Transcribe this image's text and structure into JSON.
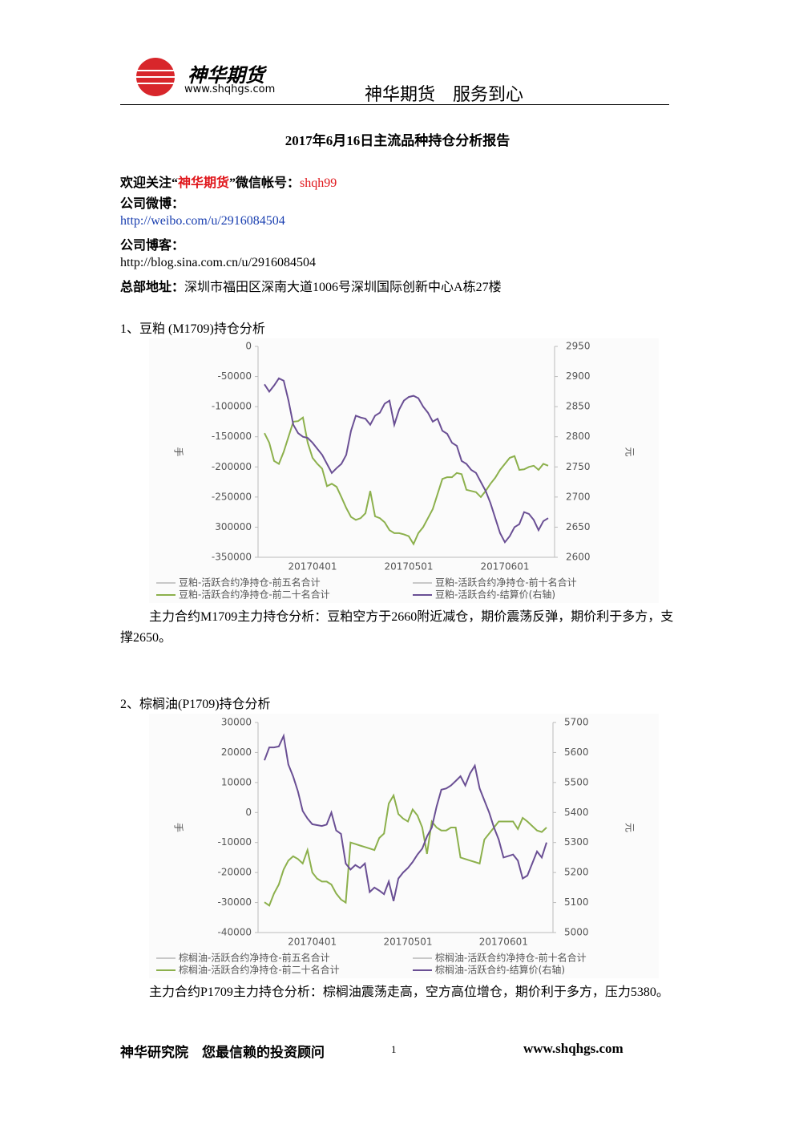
{
  "header": {
    "logo_name": "神华期货",
    "logo_url": "www.shqhgs.com",
    "slogan": "神华期货　服务到心"
  },
  "title": "2017年6月16日主流品种持仓分析报告",
  "follow": {
    "prefix": "欢迎关注“",
    "name": "神华期货",
    "middle": "”微信帐号：",
    "account": "shqh99"
  },
  "weibo": {
    "label": "公司微博：",
    "url": "http://weibo.com/u/2916084504"
  },
  "blog": {
    "label": "公司博客：",
    "url": "http://blog.sina.com.cn/u/2916084504"
  },
  "address": {
    "label": "总部地址：",
    "text": "深圳市福田区深南大道1006号深圳国际创新中心A栋27楼"
  },
  "sections": [
    {
      "heading": "1、豆粕 (M1709)持仓分析",
      "chart": {
        "type": "line",
        "y_label": "手",
        "y2_label": "元",
        "ylim": [
          -350000,
          0
        ],
        "yticks": [
          0,
          -50000,
          -100000,
          -150000,
          -200000,
          -250000,
          {
            "value": -300000,
            "label": "300000"
          },
          -350000
        ],
        "y2lim": [
          2600,
          2950
        ],
        "y2ticks": [
          2950,
          2900,
          2850,
          2800,
          2750,
          2700,
          2650,
          2600
        ],
        "categories": [
          null,
          null,
          null,
          null,
          null,
          null,
          null,
          null,
          null,
          null,
          "20170401",
          null,
          null,
          null,
          null,
          null,
          null,
          null,
          null,
          null,
          null,
          null,
          null,
          null,
          null,
          null,
          null,
          null,
          null,
          null,
          "20170501",
          null,
          null,
          null,
          null,
          null,
          null,
          null,
          null,
          null,
          null,
          null,
          null,
          null,
          null,
          null,
          null,
          null,
          null,
          null,
          "20170601",
          null,
          null,
          null,
          null,
          null,
          null,
          null,
          null,
          null
        ],
        "series": [
          {
            "name": "豆粕-活跃合约净持仓-前五名合计",
            "color": "#c8c8c8"
          },
          {
            "name": "豆粕-活跃合约净持仓-前十名合计",
            "color": "#c8c8c8"
          },
          {
            "name": "豆粕-活跃合约净持仓-前二十名合计",
            "color": "#8cb04c",
            "values": [
              -144000,
              -160000,
              -190000,
              -195000,
              -175000,
              -150000,
              -125000,
              -124000,
              -118000,
              -160000,
              -185000,
              -195000,
              -203000,
              -232000,
              -228000,
              -233000,
              -250000,
              -268000,
              -283000,
              -288000,
              -285000,
              -277000,
              -240000,
              -282000,
              -285000,
              -292000,
              -305000,
              -310000,
              -310000,
              -312000,
              -315000,
              -328000,
              -310000,
              -300000,
              -285000,
              -270000,
              -245000,
              -220000,
              -217000,
              -217000,
              -210000,
              -212000,
              -238000,
              -240000,
              -242000,
              -250000,
              -240000,
              -228000,
              -218000,
              -205000,
              -195000,
              -185000,
              -182000,
              -205000,
              -204000,
              -200000,
              -198000,
              -205000,
              -195000,
              -198000
            ]
          },
          {
            "name": "豆粕-活跃合约-结算价(右轴)",
            "color": "#6a4f94",
            "axis": "y2",
            "values": [
              2887,
              2875,
              2885,
              2897,
              2893,
              2860,
              2820,
              2806,
              2800,
              2798,
              2790,
              2780,
              2770,
              2755,
              2740,
              2748,
              2755,
              2770,
              2810,
              2835,
              2832,
              2830,
              2820,
              2835,
              2840,
              2855,
              2860,
              2820,
              2845,
              2860,
              2866,
              2868,
              2864,
              2850,
              2840,
              2825,
              2830,
              2810,
              2805,
              2790,
              2785,
              2760,
              2755,
              2745,
              2740,
              2725,
              2710,
              2690,
              2665,
              2640,
              2625,
              2635,
              2650,
              2655,
              2675,
              2672,
              2662,
              2645,
              2660,
              2665
            ]
          }
        ]
      },
      "analysis": "主力合约M1709主力持仓分析：豆粕空方于2660附近减仓，期价震荡反弹，期价利于多方，支撑2650。"
    },
    {
      "heading": "2、棕榈油(P1709)持仓分析",
      "chart": {
        "type": "line",
        "y_label": "手",
        "y2_label": "元",
        "ylim": [
          -40000,
          30000
        ],
        "yticks": [
          30000,
          20000,
          10000,
          0,
          -10000,
          -20000,
          -30000,
          -40000
        ],
        "y2lim": [
          5000,
          5700
        ],
        "y2ticks": [
          5700,
          5600,
          5500,
          5400,
          5300,
          5200,
          5100,
          5000
        ],
        "categories": [
          null,
          null,
          null,
          null,
          null,
          null,
          null,
          null,
          null,
          null,
          "20170401",
          null,
          null,
          null,
          null,
          null,
          null,
          null,
          null,
          null,
          null,
          null,
          null,
          null,
          null,
          null,
          null,
          null,
          null,
          null,
          "20170501",
          null,
          null,
          null,
          null,
          null,
          null,
          null,
          null,
          null,
          null,
          null,
          null,
          null,
          null,
          null,
          null,
          null,
          null,
          null,
          "20170601",
          null,
          null,
          null,
          null,
          null,
          null,
          null,
          null,
          null
        ],
        "series": [
          {
            "name": "棕榈油-活跃合约净持仓-前五名合计",
            "color": "#c8c8c8"
          },
          {
            "name": "棕榈油-活跃合约净持仓-前十名合计",
            "color": "#c8c8c8"
          },
          {
            "name": "棕榈油-活跃合约净持仓-前二十名合计",
            "color": "#8cb04c",
            "values": [
              -29900,
              -31000,
              -27000,
              -24000,
              -19000,
              -16000,
              -14600,
              -15500,
              -17000,
              -12500,
              -20000,
              -22000,
              -23000,
              -23000,
              -24000,
              -27000,
              -29000,
              -30000,
              -10000,
              -10500,
              -11000,
              -11500,
              -12000,
              -12500,
              -8500,
              -7000,
              3000,
              5700,
              -500,
              -2000,
              -3000,
              1000,
              -1000,
              -5000,
              -13800,
              -3000,
              -5000,
              -6000,
              -6000,
              -5000,
              -5000,
              -15000,
              -15500,
              -16000,
              -16500,
              -17000,
              -9000,
              -7000,
              -5000,
              -3000,
              -3000,
              -3000,
              -3000,
              -5500,
              -1800,
              -3000,
              -4500,
              -6000,
              -6500,
              -5000
            ]
          },
          {
            "name": "棕榈油-活跃合约-结算价(右轴)",
            "color": "#6a4f94",
            "axis": "y2",
            "values": [
              5574,
              5617,
              5617,
              5620,
              5655,
              5560,
              5520,
              5470,
              5405,
              5380,
              5361,
              5358,
              5355,
              5360,
              5400,
              5340,
              5329,
              5230,
              5210,
              5225,
              5215,
              5230,
              5135,
              5150,
              5140,
              5128,
              5170,
              5105,
              5180,
              5200,
              5215,
              5235,
              5260,
              5280,
              5320,
              5350,
              5420,
              5476,
              5480,
              5490,
              5505,
              5521,
              5490,
              5530,
              5556,
              5480,
              5440,
              5400,
              5350,
              5310,
              5250,
              5255,
              5260,
              5240,
              5180,
              5190,
              5230,
              5270,
              5250,
              5300
            ]
          }
        ]
      },
      "analysis": "主力合约P1709主力持仓分析：棕榈油震荡走高，空方高位增仓，期价利于多方，压力5380。"
    }
  ],
  "footer": {
    "left": "神华研究院　您最信赖的投资顾问",
    "page": "1",
    "site": "www.shqhgs.com"
  }
}
